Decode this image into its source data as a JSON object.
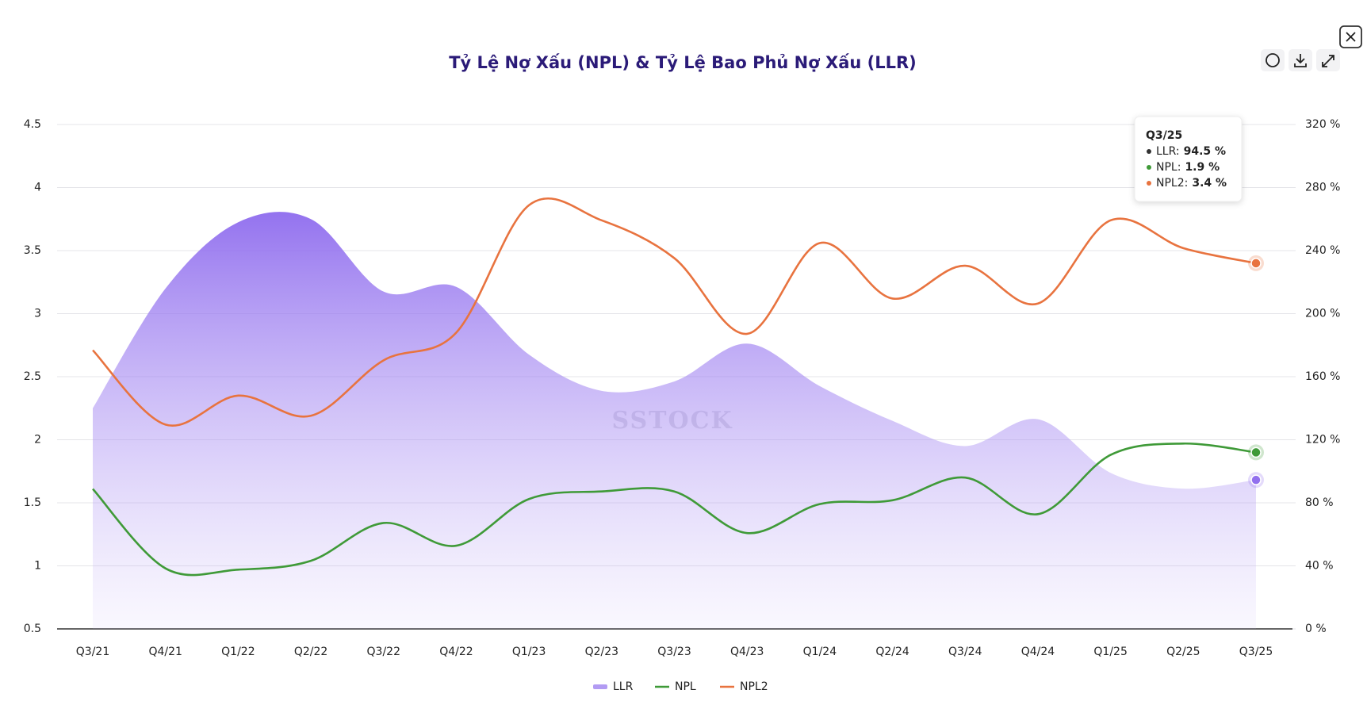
{
  "chart_data": {
    "type": "line",
    "title": "Tỷ Lệ Nợ Xấu (NPL) & Tỷ Lệ Bao Phủ Nợ Xấu (LLR)",
    "categories": [
      "Q3/21",
      "Q4/21",
      "Q1/22",
      "Q2/22",
      "Q3/22",
      "Q4/22",
      "Q1/23",
      "Q2/23",
      "Q3/23",
      "Q4/23",
      "Q1/24",
      "Q2/24",
      "Q3/24",
      "Q4/24",
      "Q1/25",
      "Q2/25",
      "Q3/25"
    ],
    "series": [
      {
        "name": "LLR",
        "color": "#9270ee",
        "axis": "y2",
        "area": true,
        "values": [
          140,
          216,
          258,
          260,
          214,
          217,
          174,
          151,
          157,
          181,
          154,
          132,
          116,
          133,
          99,
          89,
          94.5
        ]
      },
      {
        "name": "NPL",
        "color": "#3f9a38",
        "values": [
          1.61,
          0.98,
          0.97,
          1.04,
          1.34,
          1.16,
          1.53,
          1.59,
          1.59,
          1.26,
          1.49,
          1.52,
          1.7,
          1.41,
          1.88,
          1.97,
          1.9
        ]
      },
      {
        "name": "NPL2",
        "color": "#e8733f",
        "values": [
          2.71,
          2.12,
          2.35,
          2.19,
          2.63,
          2.85,
          3.86,
          3.74,
          3.44,
          2.84,
          3.56,
          3.12,
          3.38,
          3.08,
          3.74,
          3.52,
          3.4
        ]
      }
    ],
    "ylim": [
      0.5,
      4.5
    ],
    "yticks": [
      0.5,
      1,
      1.5,
      2,
      2.5,
      3,
      3.5,
      4,
      4.5
    ],
    "y2lim": [
      0,
      320
    ],
    "y2ticks": [
      {
        "value": 0,
        "label": "0 %"
      },
      {
        "value": 40,
        "label": "40 %"
      },
      {
        "value": 80,
        "label": "80 %"
      },
      {
        "value": 120,
        "label": "120 %"
      },
      {
        "value": 160,
        "label": "160 %"
      },
      {
        "value": 200,
        "label": "200 %"
      },
      {
        "value": 240,
        "label": "240 %"
      },
      {
        "value": 280,
        "label": "280 %"
      },
      {
        "value": 320,
        "label": "320 %"
      }
    ],
    "grid": true,
    "legend": "bottom",
    "watermark": "SSTOCK",
    "tooltip": {
      "title": "Q3/25",
      "items": [
        {
          "label": "LLR:",
          "value_label": "94.5 %",
          "color": "#333333"
        },
        {
          "label": "NPL:",
          "value_label": "1.9 %",
          "color": "#3f9a38"
        },
        {
          "label": "NPL2:",
          "value_label": "3.4 %",
          "color": "#e8733f"
        }
      ]
    }
  }
}
